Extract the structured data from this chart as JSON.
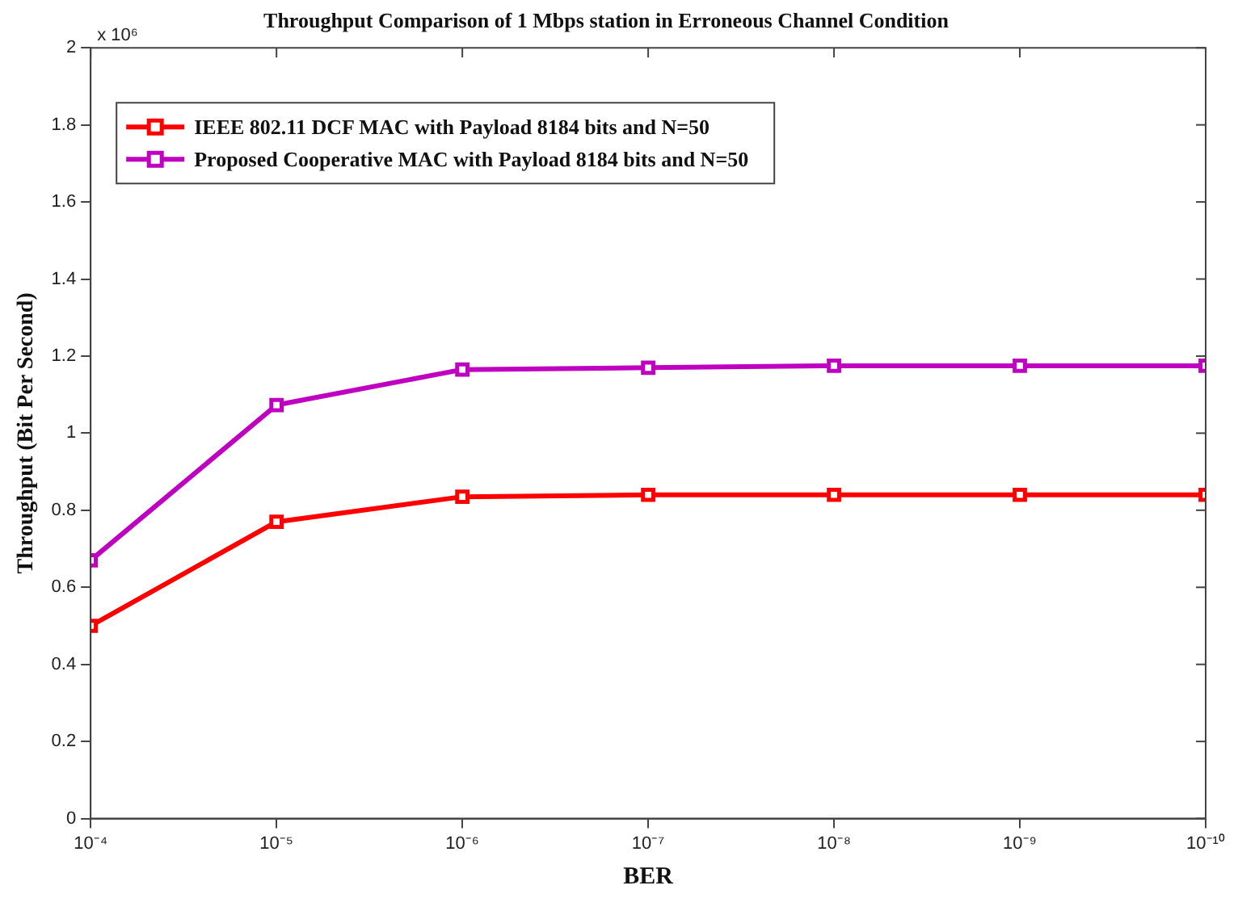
{
  "chart_data": {
    "type": "line",
    "title": "Throughput Comparison of 1 Mbps station in Erroneous Channel Condition",
    "xlabel": "BER",
    "ylabel": "Throughput (Bit Per Second)",
    "annotations": [
      "x 10⁶"
    ],
    "x": [
      0.0001,
      1e-05,
      1e-06,
      1e-07,
      1e-08,
      1e-09,
      1e-10
    ],
    "series": [
      {
        "name": "IEEE 802.11 DCF MAC with Payload 8184 bits and N=50",
        "color": "#ff0000",
        "values": [
          0.5,
          0.77,
          0.835,
          0.84,
          0.84,
          0.84,
          0.84
        ]
      },
      {
        "name": "Proposed Cooperative MAC with Payload 8184 bits and N=50",
        "color": "#c000c0",
        "values": [
          0.67,
          1.073,
          1.165,
          1.17,
          1.175,
          1.175,
          1.175
        ]
      }
    ],
    "log": "x",
    "xlim": [
      0.0001,
      1e-10
    ],
    "xticks": [
      {
        "value": 0.0001,
        "label": "10⁻⁴"
      },
      {
        "value": 1e-05,
        "label": "10⁻⁵"
      },
      {
        "value": 1e-06,
        "label": "10⁻⁶"
      },
      {
        "value": 1e-07,
        "label": "10⁻⁷"
      },
      {
        "value": 1e-08,
        "label": "10⁻⁸"
      },
      {
        "value": 1e-09,
        "label": "10⁻⁹"
      },
      {
        "value": 1e-10,
        "label": "10⁻¹⁰"
      }
    ],
    "ylim": [
      0,
      2
    ],
    "yticks": [
      0,
      0.2,
      0.4,
      0.6,
      0.8,
      1,
      1.2,
      1.4,
      1.6,
      1.8,
      2
    ],
    "grid": false,
    "legend": "top left",
    "marker": "square",
    "line_style": "solid"
  }
}
